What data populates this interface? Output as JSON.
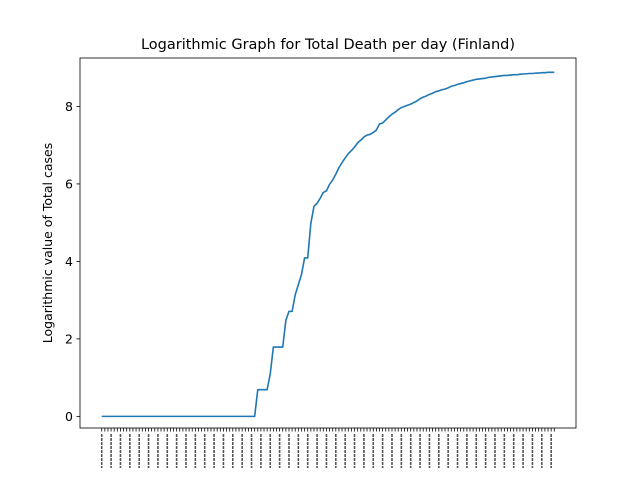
{
  "chart_data": {
    "type": "line",
    "title": "Logarithmic Graph for Total Death per day (Finland)",
    "xlabel": "",
    "ylabel": "Logarithmic value of Total cases",
    "ylim": [
      -0.3,
      9.25
    ],
    "yticks": [
      0,
      2,
      4,
      6,
      8
    ],
    "grid": false,
    "line_color": "#1f77b4",
    "x_tick_note": "dense date tick labels (rotated 90°) along the x-axis are not legible in the image",
    "series": [
      {
        "points": [
          [
            0,
            0
          ],
          [
            10,
            0
          ],
          [
            20,
            0
          ],
          [
            30,
            0
          ],
          [
            40,
            0
          ],
          [
            49,
            0
          ],
          [
            50,
            0.69
          ],
          [
            52,
            0.69
          ],
          [
            53,
            0.69
          ],
          [
            54,
            1.1
          ],
          [
            55,
            1.79
          ],
          [
            58,
            1.79
          ],
          [
            59,
            2.48
          ],
          [
            60,
            2.71
          ],
          [
            61,
            2.71
          ],
          [
            62,
            3.14
          ],
          [
            63,
            3.4
          ],
          [
            64,
            3.66
          ],
          [
            65,
            4.09
          ],
          [
            66,
            4.09
          ],
          [
            67,
            4.98
          ],
          [
            68,
            5.42
          ],
          [
            69,
            5.5
          ],
          [
            70,
            5.63
          ],
          [
            71,
            5.78
          ],
          [
            72,
            5.82
          ],
          [
            73,
            5.99
          ],
          [
            74,
            6.1
          ],
          [
            75,
            6.25
          ],
          [
            76,
            6.42
          ],
          [
            77,
            6.55
          ],
          [
            78,
            6.67
          ],
          [
            79,
            6.78
          ],
          [
            80,
            6.86
          ],
          [
            81,
            6.95
          ],
          [
            82,
            7.06
          ],
          [
            83,
            7.13
          ],
          [
            84,
            7.21
          ],
          [
            85,
            7.26
          ],
          [
            86,
            7.28
          ],
          [
            87,
            7.33
          ],
          [
            88,
            7.39
          ],
          [
            89,
            7.55
          ],
          [
            90,
            7.57
          ],
          [
            91,
            7.65
          ],
          [
            92,
            7.73
          ],
          [
            93,
            7.8
          ],
          [
            94,
            7.85
          ],
          [
            95,
            7.92
          ],
          [
            96,
            7.97
          ],
          [
            97,
            8.0
          ],
          [
            98,
            8.03
          ],
          [
            99,
            8.06
          ],
          [
            100,
            8.1
          ],
          [
            101,
            8.14
          ],
          [
            102,
            8.2
          ],
          [
            103,
            8.24
          ],
          [
            104,
            8.27
          ],
          [
            105,
            8.31
          ],
          [
            106,
            8.34
          ],
          [
            107,
            8.38
          ],
          [
            108,
            8.4
          ],
          [
            109,
            8.43
          ],
          [
            110,
            8.45
          ],
          [
            111,
            8.48
          ],
          [
            112,
            8.52
          ],
          [
            113,
            8.54
          ],
          [
            114,
            8.57
          ],
          [
            115,
            8.59
          ],
          [
            116,
            8.61
          ],
          [
            117,
            8.64
          ],
          [
            118,
            8.66
          ],
          [
            119,
            8.68
          ],
          [
            120,
            8.7
          ],
          [
            121,
            8.71
          ],
          [
            122,
            8.72
          ],
          [
            123,
            8.73
          ],
          [
            124,
            8.75
          ],
          [
            125,
            8.76
          ],
          [
            126,
            8.77
          ],
          [
            127,
            8.78
          ],
          [
            128,
            8.79
          ],
          [
            129,
            8.8
          ],
          [
            130,
            8.8
          ],
          [
            131,
            8.81
          ],
          [
            132,
            8.82
          ],
          [
            133,
            8.82
          ],
          [
            134,
            8.83
          ],
          [
            135,
            8.84
          ],
          [
            136,
            8.84
          ],
          [
            137,
            8.85
          ],
          [
            138,
            8.85
          ],
          [
            139,
            8.86
          ],
          [
            140,
            8.86
          ],
          [
            141,
            8.87
          ],
          [
            142,
            8.87
          ],
          [
            143,
            8.88
          ],
          [
            144,
            8.88
          ],
          [
            145,
            8.88
          ]
        ]
      }
    ]
  }
}
